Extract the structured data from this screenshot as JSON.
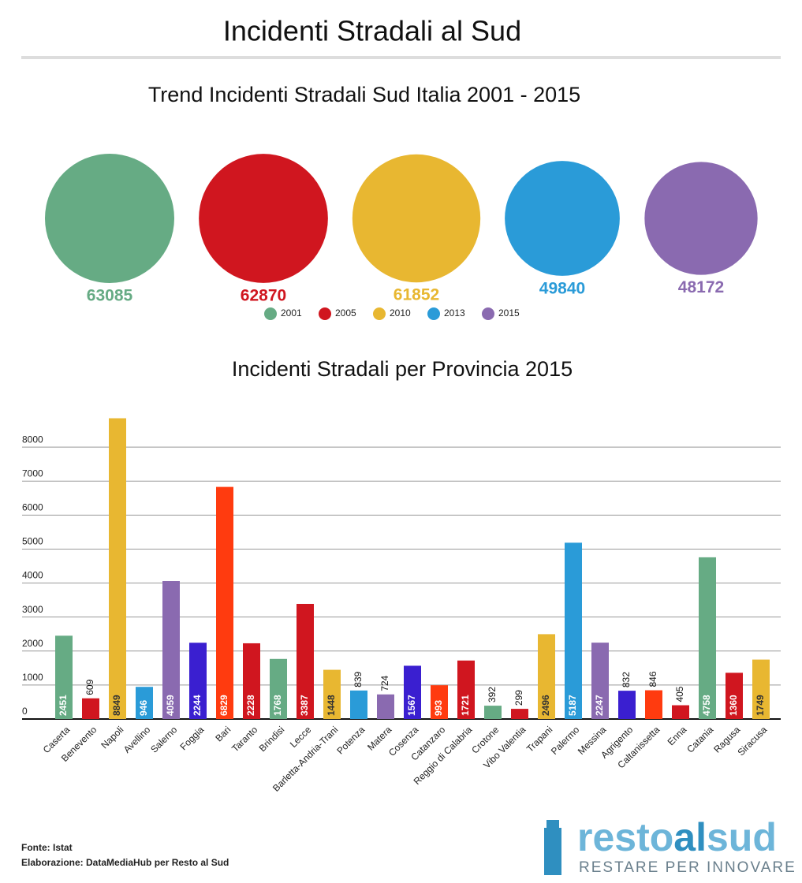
{
  "title": "Incidenti Stradali al Sud",
  "chart_data": [
    {
      "type": "bubble",
      "title": "Trend Incidenti Stradali Sud Italia 2001 - 2015",
      "categories": [
        "2001",
        "2005",
        "2010",
        "2013",
        "2015"
      ],
      "values": [
        63085,
        62870,
        61852,
        49840,
        48172
      ],
      "colors": [
        "#66ab84",
        "#d0161f",
        "#e8b731",
        "#2a9bd8",
        "#8a6ab0"
      ],
      "legend": "bottom"
    },
    {
      "type": "bar",
      "title": "Incidenti Stradali per Provincia 2015",
      "categories": [
        "Caserta",
        "Benevento",
        "Napoli",
        "Avellino",
        "Salerno",
        "Foggia",
        "Bari",
        "Taranto",
        "Brindisi",
        "Lecce",
        "Barletta-Andria-Trani",
        "Potenza",
        "Matera",
        "Cosenza",
        "Catanzaro",
        "Reggio di Calabria",
        "Crotone",
        "Vibo Valentia",
        "Trapani",
        "Palermo",
        "Messina",
        "Agrigento",
        "Caltanissetta",
        "Enna",
        "Catania",
        "Ragusa",
        "Siracusa"
      ],
      "values": [
        2451,
        609,
        8849,
        946,
        4059,
        2244,
        6829,
        2228,
        1768,
        3387,
        1448,
        839,
        724,
        1567,
        993,
        1721,
        392,
        299,
        2496,
        5187,
        2247,
        832,
        846,
        405,
        4758,
        1360,
        1749
      ],
      "colors": [
        "#66ab84",
        "#d0161f",
        "#e8b731",
        "#2a9bd8",
        "#8a6ab0",
        "#3a1fd0",
        "#ff3b0f",
        "#d0161f",
        "#66ab84",
        "#d0161f",
        "#e8b731",
        "#2a9bd8",
        "#8a6ab0",
        "#3a1fd0",
        "#ff3b0f",
        "#d0161f",
        "#66ab84",
        "#d0161f",
        "#e8b731",
        "#2a9bd8",
        "#8a6ab0",
        "#3a1fd0",
        "#ff3b0f",
        "#d0161f",
        "#66ab84",
        "#d0161f",
        "#e8b731"
      ],
      "ylim": [
        0,
        9000
      ],
      "yticks": [
        0,
        1000,
        2000,
        3000,
        4000,
        5000,
        6000,
        7000,
        8000
      ],
      "grid": true
    }
  ],
  "footer": {
    "source": "Fonte: Istat",
    "credit": "Elaborazione: DataMediaHub per Resto al Sud"
  },
  "logo": {
    "parts": [
      "resto",
      "al",
      "sud"
    ],
    "tagline": "RESTARE PER INNOVARE"
  }
}
